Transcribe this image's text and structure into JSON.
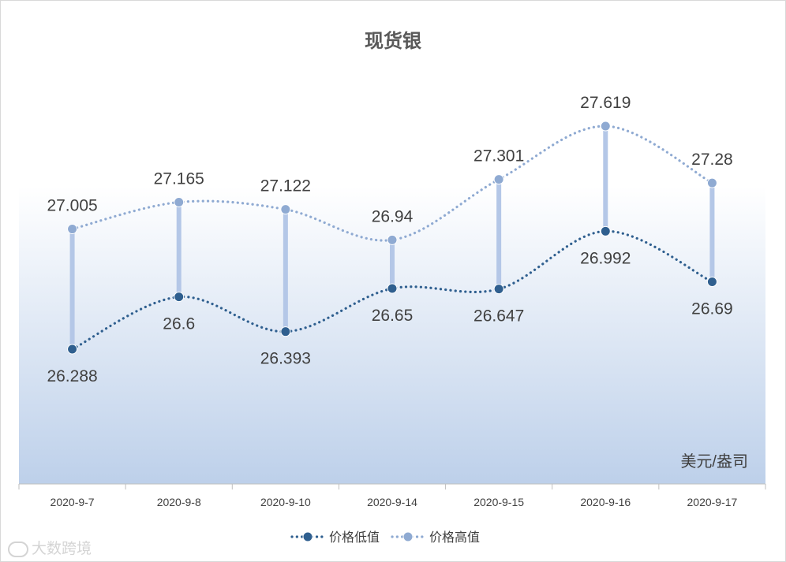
{
  "chart_data": {
    "type": "line",
    "title": "现货银",
    "unit_label": "美元/盎司",
    "categories": [
      "2020-9-7",
      "2020-9-8",
      "2020-9-10",
      "2020-9-14",
      "2020-9-15",
      "2020-9-16",
      "2020-9-17"
    ],
    "series": [
      {
        "name": "价格低值",
        "color": "#2f5f8f",
        "values": [
          26.288,
          26.6,
          26.393,
          26.65,
          26.647,
          26.992,
          26.69
        ],
        "labels": [
          "26.288",
          "26.6",
          "26.393",
          "26.65",
          "26.647",
          "26.992",
          "26.69"
        ]
      },
      {
        "name": "价格高值",
        "color": "#8faad2",
        "values": [
          27.005,
          27.165,
          27.122,
          26.94,
          27.301,
          27.619,
          27.28
        ],
        "labels": [
          "27.005",
          "27.165",
          "27.122",
          "26.94",
          "27.301",
          "27.619",
          "27.28"
        ]
      }
    ],
    "high_low_lines": true,
    "high_low_color": "#b4c7e7",
    "line_style": "smoothed-dotted",
    "plot_fill": "gradient white-to-light-blue",
    "legend_position": "bottom",
    "gridlines": false,
    "y_axis_visible": false
  },
  "watermark": {
    "text": "大数跨境",
    "icon": "watermark-logo-icon"
  }
}
